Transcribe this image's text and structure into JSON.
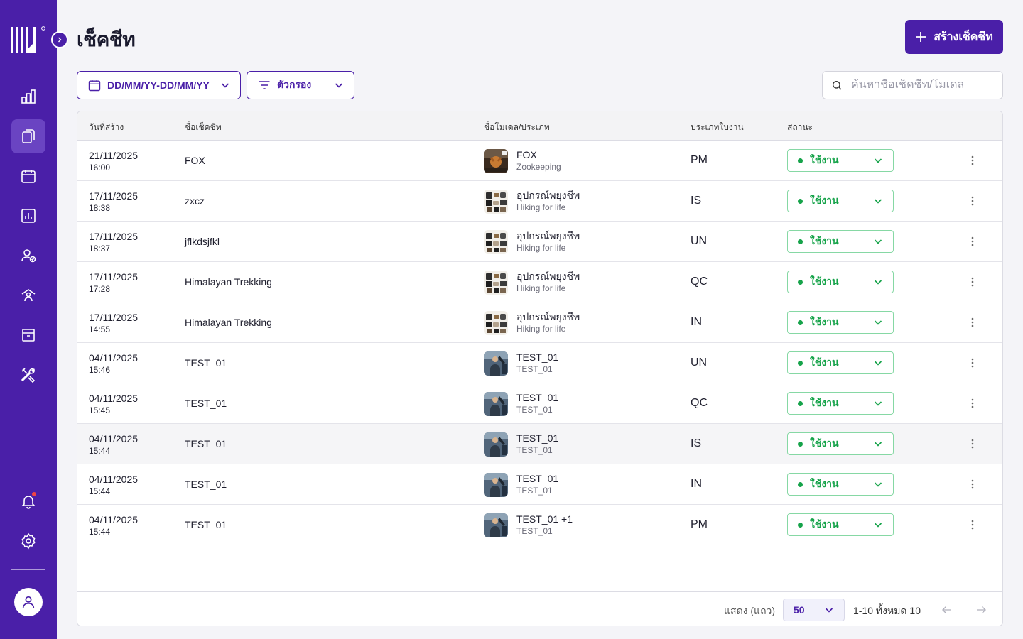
{
  "page": {
    "title": "เช็คชีท",
    "create_label": "สร้างเช็คชีท"
  },
  "filters": {
    "date_range_label": "DD/MM/YY-DD/MM/YY",
    "filter_label": "ตัวกรอง",
    "search_placeholder": "ค้นหาชื่อเช็คชีท/โมเดล"
  },
  "table": {
    "headers": {
      "created": "วันที่สร้าง",
      "name": "ชื่อเช็คชีท",
      "model": "ชื่อโมเดล/ประเภท",
      "type": "ประเภทใบงาน",
      "status": "สถานะ"
    },
    "rows": [
      {
        "date": "21/11/2025",
        "time": "16:00",
        "name": "FOX",
        "model": "FOX",
        "category": "Zookeeping",
        "type": "PM",
        "status": "ใช้งาน",
        "thumb": "fox"
      },
      {
        "date": "17/11/2025",
        "time": "18:38",
        "name": "zxcz",
        "model": "อุปกรณ์พยุงชีพ",
        "category": "Hiking for life",
        "type": "IS",
        "status": "ใช้งาน",
        "thumb": "gear"
      },
      {
        "date": "17/11/2025",
        "time": "18:37",
        "name": "jflkdsjfkl",
        "model": "อุปกรณ์พยุงชีพ",
        "category": "Hiking for life",
        "type": "UN",
        "status": "ใช้งาน",
        "thumb": "gear"
      },
      {
        "date": "17/11/2025",
        "time": "17:28",
        "name": "Himalayan Trekking",
        "model": "อุปกรณ์พยุงชีพ",
        "category": "Hiking for life",
        "type": "QC",
        "status": "ใช้งาน",
        "thumb": "gear"
      },
      {
        "date": "17/11/2025",
        "time": "14:55",
        "name": "Himalayan Trekking",
        "model": "อุปกรณ์พยุงชีพ",
        "category": "Hiking for life",
        "type": "IN",
        "status": "ใช้งาน",
        "thumb": "gear"
      },
      {
        "date": "04/11/2025",
        "time": "15:46",
        "name": "TEST_01",
        "model": "TEST_01",
        "category": "TEST_01",
        "type": "UN",
        "status": "ใช้งาน",
        "thumb": "test"
      },
      {
        "date": "04/11/2025",
        "time": "15:45",
        "name": "TEST_01",
        "model": "TEST_01",
        "category": "TEST_01",
        "type": "QC",
        "status": "ใช้งาน",
        "thumb": "test"
      },
      {
        "date": "04/11/2025",
        "time": "15:44",
        "name": "TEST_01",
        "model": "TEST_01",
        "category": "TEST_01",
        "type": "IS",
        "status": "ใช้งาน",
        "thumb": "test"
      },
      {
        "date": "04/11/2025",
        "time": "15:44",
        "name": "TEST_01",
        "model": "TEST_01",
        "category": "TEST_01",
        "type": "IN",
        "status": "ใช้งาน",
        "thumb": "test"
      },
      {
        "date": "04/11/2025",
        "time": "15:44",
        "name": "TEST_01",
        "model": "TEST_01 +1",
        "category": "TEST_01",
        "type": "PM",
        "status": "ใช้งาน",
        "thumb": "test"
      }
    ]
  },
  "footer": {
    "rows_label": "แสดง (แถว)",
    "page_size": "50",
    "range_label": "1-10 ทั้งหมด 10"
  },
  "colors": {
    "brand": "#4a1fa8",
    "active_nav": "#6a44c2",
    "status_green": "#16a34a",
    "status_border": "#86d8a4"
  },
  "sidebar": {
    "icons": [
      "dashboard-icon",
      "checksheet-icon",
      "calendar-icon",
      "report-icon",
      "user-check-icon",
      "building-icon",
      "archive-icon",
      "tools-icon",
      "bell-icon",
      "gear-icon",
      "user-icon"
    ]
  }
}
